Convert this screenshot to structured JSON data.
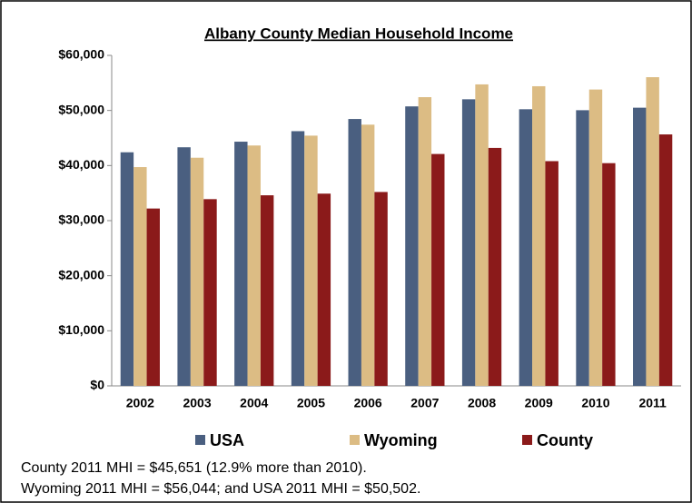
{
  "chart_data": {
    "type": "bar",
    "title": "Albany County Median Household Income",
    "categories": [
      "2002",
      "2003",
      "2004",
      "2005",
      "2006",
      "2007",
      "2008",
      "2009",
      "2010",
      "2011"
    ],
    "series": [
      {
        "name": "USA",
        "color": "#4a5f80",
        "values": [
          42409,
          43318,
          44334,
          46242,
          48451,
          50740,
          52029,
          50221,
          50046,
          50502
        ]
      },
      {
        "name": "Wyoming",
        "color": "#dcbc84",
        "values": [
          39719,
          41420,
          43641,
          45429,
          47423,
          52416,
          54735,
          54400,
          53802,
          56044
        ]
      },
      {
        "name": "County",
        "color": "#8b1a1a",
        "values": [
          32200,
          33900,
          34600,
          34900,
          35200,
          42100,
          43200,
          40800,
          40435,
          45651
        ]
      }
    ],
    "ylim": [
      0,
      60000
    ],
    "yticks": [
      {
        "value": 0,
        "label": "$0"
      },
      {
        "value": 10000,
        "label": "$10,000"
      },
      {
        "value": 20000,
        "label": "$20,000"
      },
      {
        "value": 30000,
        "label": "$30,000"
      },
      {
        "value": 40000,
        "label": "$40,000"
      },
      {
        "value": 50000,
        "label": "$50,000"
      },
      {
        "value": 60000,
        "label": "$60,000"
      }
    ],
    "grid": false,
    "notes": [
      "County 2011 MHI = $45,651 (12.9% more than 2010).",
      "Wyoming 2011 MHI = $56,044; and USA 2011 MHI = $50,502."
    ]
  }
}
